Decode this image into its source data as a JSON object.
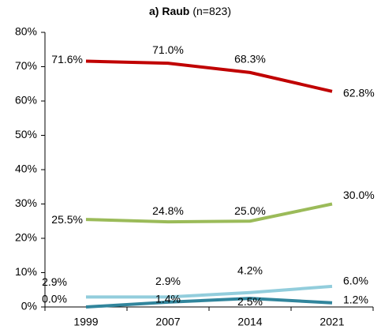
{
  "chart_data": {
    "type": "line",
    "title": "a) Raub",
    "subtitle": "(n=823)",
    "categories": [
      "1999",
      "2007",
      "2014",
      "2021"
    ],
    "series": [
      {
        "color": "#c00000",
        "values": [
          71.6,
          71.0,
          68.3,
          62.8
        ],
        "value_labels": [
          "71.6%",
          "71.0%",
          "68.3%",
          "62.8%"
        ]
      },
      {
        "color": "#9bbb59",
        "values": [
          25.5,
          24.8,
          25.0,
          30.0
        ],
        "value_labels": [
          "25.5%",
          "24.8%",
          "25.0%",
          "30.0%"
        ]
      },
      {
        "color": "#92cddc",
        "values": [
          2.9,
          2.9,
          4.2,
          6.0
        ],
        "value_labels": [
          "2.9%",
          "2.9%",
          "4.2%",
          "6.0%"
        ]
      },
      {
        "color": "#31859c",
        "values": [
          0.0,
          1.4,
          2.5,
          1.2
        ],
        "value_labels": [
          "0.0%",
          "1.4%",
          "2.5%",
          "1.2%"
        ]
      }
    ],
    "ylim": [
      0,
      80
    ],
    "yticks": [
      {
        "value": 0,
        "label": "0%"
      },
      {
        "value": 10,
        "label": "10%"
      },
      {
        "value": 20,
        "label": "20%"
      },
      {
        "value": 30,
        "label": "30%"
      },
      {
        "value": 40,
        "label": "40%"
      },
      {
        "value": 50,
        "label": "50%"
      },
      {
        "value": 60,
        "label": "60%"
      },
      {
        "value": 70,
        "label": "70%"
      },
      {
        "value": 80,
        "label": "80%"
      }
    ],
    "grid": false
  }
}
